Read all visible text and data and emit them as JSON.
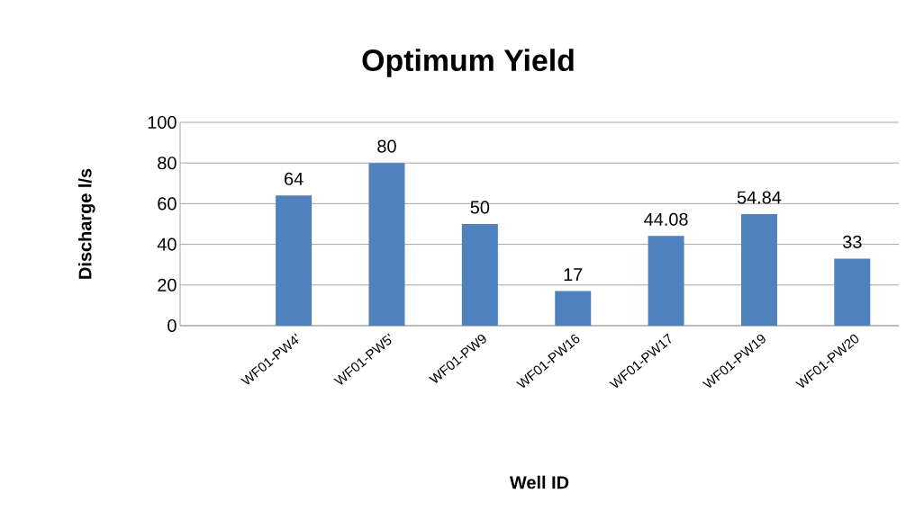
{
  "chart_data": {
    "type": "bar",
    "title": "Optimum Yield",
    "xlabel": "Well  ID",
    "ylabel": "Discharge l/s",
    "categories": [
      "WF01-PW4'",
      "WF01-PW5'",
      "WF01-PW9",
      "WF01-PW16",
      "WF01-PW17",
      "WF01-PW19",
      "WF01-PW20"
    ],
    "values": [
      64,
      80,
      50,
      17,
      44.08,
      54.84,
      33
    ],
    "color": "#4f81bd",
    "ylim": [
      0,
      100
    ],
    "yticks": [
      0,
      20,
      40,
      60,
      80,
      100
    ],
    "grid": "y",
    "data_labels": true
  }
}
